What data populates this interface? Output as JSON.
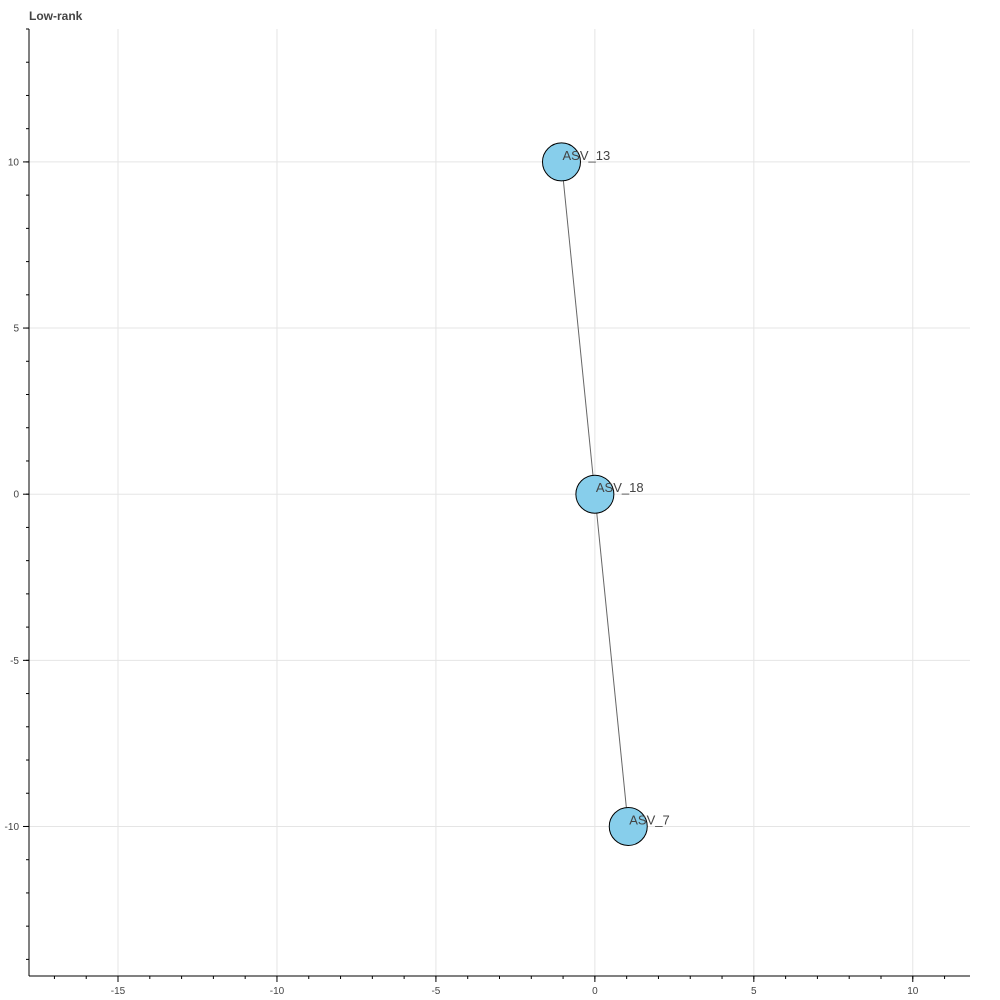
{
  "chart_data": {
    "type": "network",
    "title": "Low-rank",
    "xlabel": "",
    "ylabel": "",
    "xlim": [
      -17.8,
      11.8
    ],
    "ylim": [
      -14.5,
      14
    ],
    "grid": true,
    "xticks": [
      -15,
      -10,
      -5,
      0,
      5,
      10
    ],
    "yticks": [
      10,
      5,
      0,
      -5,
      -10
    ],
    "x_minor_step": 1,
    "y_minor_step": 1,
    "node_color": "#87ceeb",
    "node_stroke": "#000000",
    "edge_color": "#666666",
    "nodes": [
      {
        "id": "ASV_13",
        "label": "ASV_13",
        "x": -1.05,
        "y": 10
      },
      {
        "id": "ASV_18",
        "label": "ASV_18",
        "x": 0,
        "y": 0
      },
      {
        "id": "ASV_7",
        "label": "ASV_7",
        "x": 1.05,
        "y": -10
      }
    ],
    "edges": [
      {
        "source": "ASV_13",
        "target": "ASV_18"
      },
      {
        "source": "ASV_18",
        "target": "ASV_7"
      }
    ]
  }
}
